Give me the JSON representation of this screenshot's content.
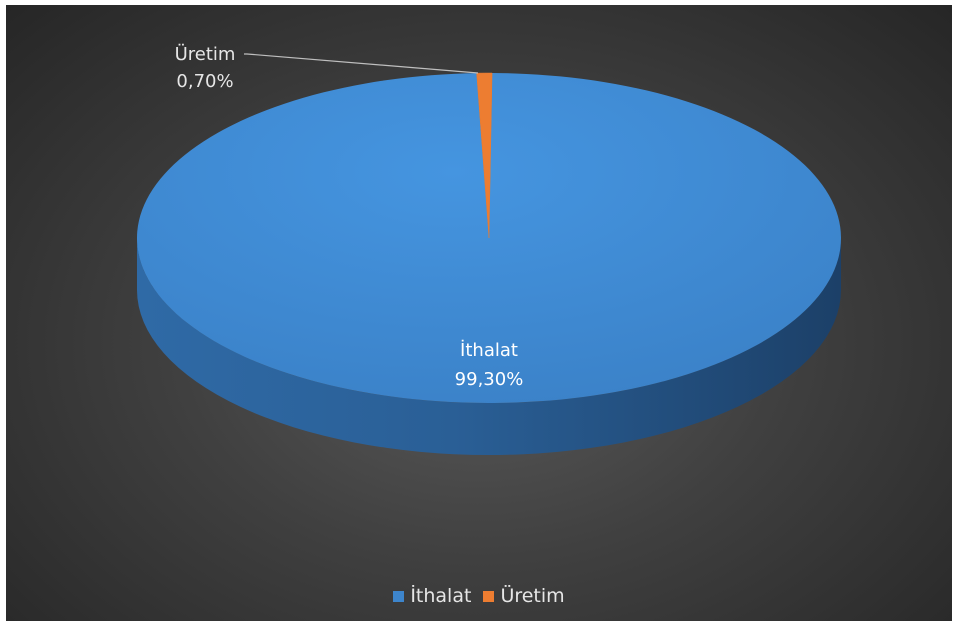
{
  "chart_data": {
    "type": "pie",
    "style": "3d",
    "slices": [
      {
        "label": "İthalat",
        "value": 99.3,
        "value_label": "99,30%",
        "color": "#3d85cc"
      },
      {
        "label": "Üretim",
        "value": 0.7,
        "value_label": "0,70%",
        "color": "#ed7d31"
      }
    ],
    "legend_position": "bottom",
    "background_color": "#404040"
  },
  "legend": {
    "items": [
      {
        "label": "İthalat",
        "color": "#3d85cc"
      },
      {
        "label": "Üretim",
        "color": "#ed7d31"
      }
    ]
  }
}
